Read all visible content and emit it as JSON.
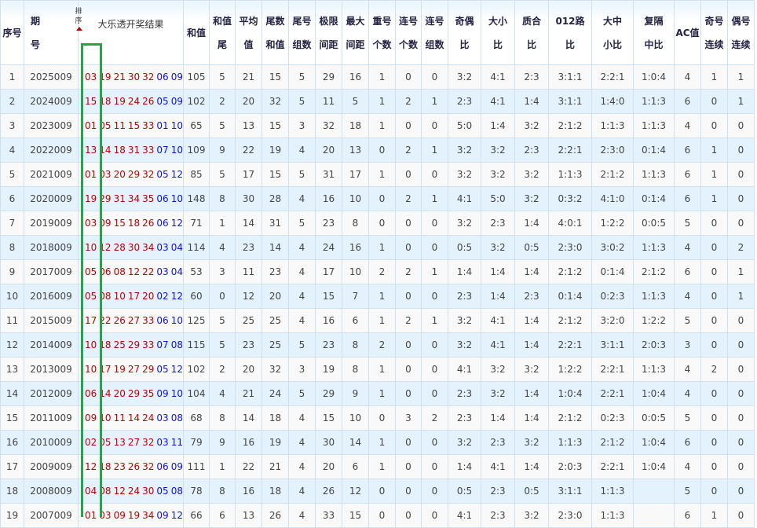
{
  "header": {
    "index": "序号",
    "period": [
      "期",
      "号"
    ],
    "sort_label": "排序",
    "result": "大乐透开奖结果",
    "sum": "和值",
    "cols": [
      [
        "和值",
        "尾"
      ],
      [
        "平均",
        "值"
      ],
      [
        "尾数",
        "和值"
      ],
      [
        "尾号",
        "组数"
      ],
      [
        "极限",
        "间距"
      ],
      [
        "最大",
        "间距"
      ],
      [
        "重号",
        "个数"
      ],
      [
        "连号",
        "个数"
      ],
      [
        "连号",
        "组数"
      ],
      [
        "奇偶",
        "比"
      ],
      [
        "大小",
        "比"
      ],
      [
        "质合",
        "比"
      ],
      [
        "012路",
        "比"
      ],
      [
        "大中",
        "小比"
      ],
      [
        "复隔",
        "中比"
      ],
      [
        "AC值"
      ],
      [
        "奇号",
        "连续"
      ],
      [
        "偶号",
        "连续"
      ]
    ]
  },
  "colors": {
    "red_ball": "#c00000",
    "blue_ball": "#1010ee",
    "highlight_box": "#23a64a"
  },
  "rows": [
    {
      "index": "1",
      "period": "2025009",
      "red": [
        "03",
        "19",
        "21",
        "30",
        "32"
      ],
      "blue": [
        "06",
        "09"
      ],
      "sum": "105",
      "stats": [
        "5",
        "21",
        "15",
        "5",
        "29",
        "16",
        "1",
        "0",
        "0",
        "3:2",
        "4:1",
        "2:3",
        "3:1:1",
        "2:2:1",
        "1:0:4",
        "4",
        "1",
        "1"
      ]
    },
    {
      "index": "2",
      "period": "2024009",
      "red": [
        "15",
        "18",
        "19",
        "24",
        "26"
      ],
      "blue": [
        "05",
        "09"
      ],
      "sum": "102",
      "stats": [
        "2",
        "20",
        "32",
        "5",
        "11",
        "5",
        "1",
        "2",
        "1",
        "2:3",
        "4:1",
        "1:4",
        "3:1:1",
        "1:4:0",
        "1:1:3",
        "6",
        "0",
        "1"
      ]
    },
    {
      "index": "3",
      "period": "2023009",
      "red": [
        "01",
        "05",
        "11",
        "15",
        "33"
      ],
      "blue": [
        "01",
        "10"
      ],
      "sum": "65",
      "stats": [
        "5",
        "13",
        "15",
        "3",
        "32",
        "18",
        "1",
        "0",
        "0",
        "5:0",
        "1:4",
        "3:2",
        "2:1:2",
        "1:1:3",
        "1:1:3",
        "4",
        "0",
        "0"
      ]
    },
    {
      "index": "4",
      "period": "2022009",
      "red": [
        "13",
        "14",
        "18",
        "31",
        "33"
      ],
      "blue": [
        "07",
        "10"
      ],
      "sum": "109",
      "stats": [
        "9",
        "22",
        "19",
        "4",
        "20",
        "13",
        "0",
        "2",
        "1",
        "3:2",
        "3:2",
        "2:3",
        "2:2:1",
        "2:3:0",
        "0:1:4",
        "6",
        "1",
        "0"
      ]
    },
    {
      "index": "5",
      "period": "2021009",
      "red": [
        "01",
        "03",
        "20",
        "29",
        "32"
      ],
      "blue": [
        "05",
        "12"
      ],
      "sum": "85",
      "stats": [
        "5",
        "17",
        "15",
        "5",
        "31",
        "17",
        "1",
        "0",
        "0",
        "3:2",
        "3:2",
        "3:2",
        "1:1:3",
        "2:1:2",
        "1:1:3",
        "6",
        "1",
        "0"
      ]
    },
    {
      "index": "6",
      "period": "2020009",
      "red": [
        "19",
        "29",
        "31",
        "34",
        "35"
      ],
      "blue": [
        "06",
        "10"
      ],
      "sum": "148",
      "stats": [
        "8",
        "30",
        "28",
        "4",
        "16",
        "10",
        "0",
        "2",
        "1",
        "4:1",
        "5:0",
        "3:2",
        "0:3:2",
        "4:1:0",
        "0:1:4",
        "6",
        "1",
        "0"
      ]
    },
    {
      "index": "7",
      "period": "2019009",
      "red": [
        "03",
        "09",
        "15",
        "18",
        "26"
      ],
      "blue": [
        "06",
        "12"
      ],
      "sum": "71",
      "stats": [
        "1",
        "14",
        "31",
        "5",
        "23",
        "8",
        "0",
        "0",
        "0",
        "3:2",
        "2:3",
        "1:4",
        "4:0:1",
        "1:2:2",
        "0:0:5",
        "5",
        "0",
        "0"
      ]
    },
    {
      "index": "8",
      "period": "2018009",
      "red": [
        "10",
        "12",
        "28",
        "30",
        "34"
      ],
      "blue": [
        "03",
        "04"
      ],
      "sum": "114",
      "stats": [
        "4",
        "23",
        "14",
        "4",
        "24",
        "16",
        "1",
        "0",
        "0",
        "0:5",
        "3:2",
        "0:5",
        "2:3:0",
        "3:0:2",
        "1:1:3",
        "4",
        "0",
        "2"
      ]
    },
    {
      "index": "9",
      "period": "2017009",
      "red": [
        "05",
        "06",
        "08",
        "12",
        "22"
      ],
      "blue": [
        "03",
        "04"
      ],
      "sum": "53",
      "stats": [
        "3",
        "11",
        "23",
        "4",
        "17",
        "10",
        "2",
        "2",
        "1",
        "1:4",
        "1:4",
        "1:4",
        "2:1:2",
        "0:1:4",
        "2:1:2",
        "6",
        "0",
        "1"
      ]
    },
    {
      "index": "10",
      "period": "2016009",
      "red": [
        "05",
        "08",
        "10",
        "17",
        "20"
      ],
      "blue": [
        "02",
        "12"
      ],
      "sum": "60",
      "stats": [
        "0",
        "12",
        "20",
        "4",
        "15",
        "7",
        "1",
        "0",
        "0",
        "2:3",
        "1:4",
        "2:3",
        "0:1:4",
        "0:2:3",
        "1:1:3",
        "4",
        "0",
        "1"
      ]
    },
    {
      "index": "11",
      "period": "2015009",
      "red": [
        "17",
        "22",
        "26",
        "27",
        "33"
      ],
      "blue": [
        "06",
        "10"
      ],
      "sum": "125",
      "stats": [
        "5",
        "25",
        "25",
        "4",
        "16",
        "6",
        "1",
        "2",
        "1",
        "3:2",
        "4:1",
        "1:4",
        "2:1:2",
        "3:2:0",
        "1:2:2",
        "5",
        "0",
        "0"
      ]
    },
    {
      "index": "12",
      "period": "2014009",
      "red": [
        "10",
        "18",
        "25",
        "29",
        "33"
      ],
      "blue": [
        "07",
        "08"
      ],
      "sum": "115",
      "stats": [
        "5",
        "23",
        "25",
        "5",
        "23",
        "8",
        "2",
        "0",
        "0",
        "3:2",
        "4:1",
        "1:4",
        "2:2:1",
        "3:1:1",
        "2:0:3",
        "3",
        "0",
        "0"
      ]
    },
    {
      "index": "13",
      "period": "2013009",
      "red": [
        "10",
        "17",
        "19",
        "27",
        "29"
      ],
      "blue": [
        "05",
        "12"
      ],
      "sum": "102",
      "stats": [
        "2",
        "20",
        "32",
        "3",
        "19",
        "8",
        "1",
        "0",
        "0",
        "4:1",
        "3:2",
        "3:2",
        "1:2:2",
        "2:2:1",
        "1:1:3",
        "4",
        "2",
        "0"
      ]
    },
    {
      "index": "14",
      "period": "2012009",
      "red": [
        "06",
        "14",
        "20",
        "29",
        "35"
      ],
      "blue": [
        "09",
        "10"
      ],
      "sum": "104",
      "stats": [
        "4",
        "21",
        "24",
        "5",
        "29",
        "9",
        "1",
        "0",
        "0",
        "2:3",
        "3:2",
        "1:4",
        "1:0:4",
        "2:2:1",
        "1:0:4",
        "4",
        "0",
        "0"
      ]
    },
    {
      "index": "15",
      "period": "2011009",
      "red": [
        "09",
        "10",
        "11",
        "14",
        "24"
      ],
      "blue": [
        "03",
        "08"
      ],
      "sum": "68",
      "stats": [
        "8",
        "14",
        "18",
        "4",
        "15",
        "10",
        "0",
        "3",
        "2",
        "2:3",
        "1:4",
        "1:4",
        "2:1:2",
        "0:2:3",
        "0:0:5",
        "5",
        "0",
        "0"
      ]
    },
    {
      "index": "16",
      "period": "2010009",
      "red": [
        "02",
        "05",
        "13",
        "27",
        "32"
      ],
      "blue": [
        "03",
        "11"
      ],
      "sum": "79",
      "stats": [
        "9",
        "16",
        "19",
        "4",
        "30",
        "14",
        "1",
        "0",
        "0",
        "3:2",
        "2:3",
        "3:2",
        "1:1:3",
        "2:1:2",
        "1:0:4",
        "6",
        "0",
        "0"
      ]
    },
    {
      "index": "17",
      "period": "2009009",
      "red": [
        "12",
        "18",
        "23",
        "26",
        "32"
      ],
      "blue": [
        "06",
        "09"
      ],
      "sum": "111",
      "stats": [
        "1",
        "22",
        "21",
        "4",
        "20",
        "6",
        "1",
        "0",
        "0",
        "1:4",
        "4:1",
        "1:4",
        "2:0:3",
        "2:2:1",
        "1:0:4",
        "4",
        "0",
        "0"
      ]
    },
    {
      "index": "18",
      "period": "2008009",
      "red": [
        "04",
        "08",
        "12",
        "24",
        "30"
      ],
      "blue": [
        "05",
        "08"
      ],
      "sum": "78",
      "stats": [
        "8",
        "16",
        "18",
        "4",
        "26",
        "12",
        "0",
        "0",
        "0",
        "0:5",
        "2:3",
        "0:5",
        "3:1:1",
        "1:1:3",
        "",
        "5",
        "0",
        "0"
      ]
    },
    {
      "index": "19",
      "period": "2007009",
      "red": [
        "01",
        "03",
        "09",
        "19",
        "34"
      ],
      "blue": [
        "09",
        "12"
      ],
      "sum": "66",
      "stats": [
        "6",
        "13",
        "26",
        "4",
        "33",
        "15",
        "0",
        "0",
        "0",
        "4:1",
        "2:3",
        "3:2",
        "2:3:0",
        "1:1:3",
        "",
        "6",
        "1",
        "0"
      ]
    }
  ]
}
